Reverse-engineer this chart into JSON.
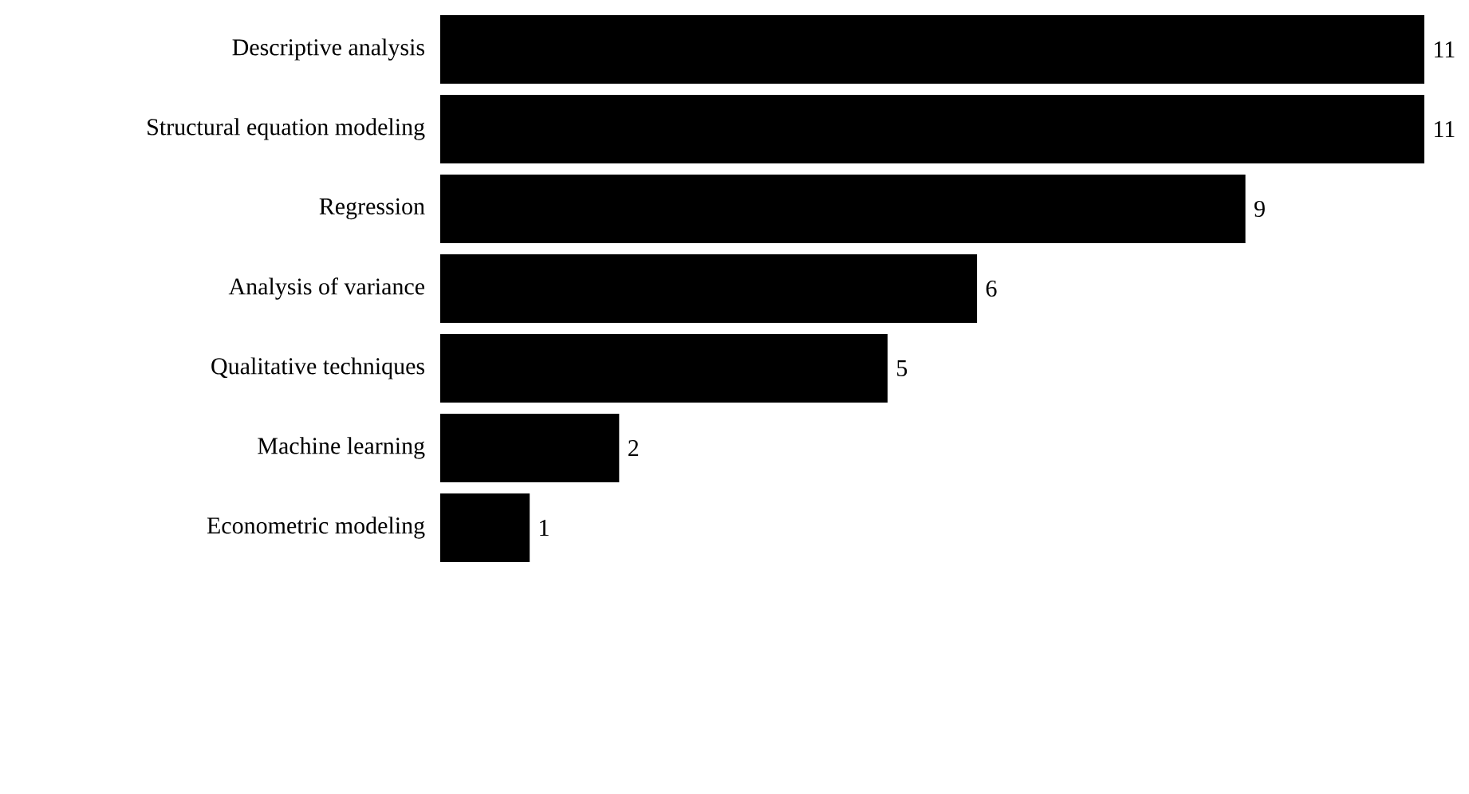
{
  "chart_data": {
    "type": "bar",
    "orientation": "horizontal",
    "categories": [
      "Descriptive analysis",
      "Structural equation modeling",
      "Regression",
      "Analysis of variance",
      "Qualitative techniques",
      "Machine learning",
      "Econometric modeling"
    ],
    "values": [
      11,
      11,
      9,
      6,
      5,
      2,
      1
    ],
    "color": "#000000",
    "data_labels": true
  }
}
